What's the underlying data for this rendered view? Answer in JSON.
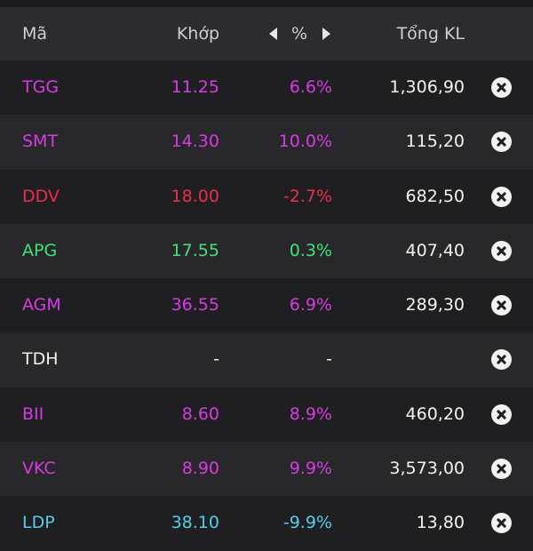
{
  "colors": {
    "up": "#d83be4",
    "ceiling": "#d83be4",
    "down": "#ea2f4e",
    "slight_up": "#3fe37a",
    "reference": "#f2f2f2",
    "floor": "#4fd0ea"
  },
  "header": {
    "symbol": "Mã",
    "price": "Khớp",
    "percent": "%",
    "volume": "Tổng KL",
    "prev_icon": "triangle-left-icon",
    "next_icon": "triangle-right-icon"
  },
  "rows": [
    {
      "symbol": "TGG",
      "price": "11.25",
      "percent": "6.6%",
      "volume": "1,306,90",
      "state": "up"
    },
    {
      "symbol": "SMT",
      "price": "14.30",
      "percent": "10.0%",
      "volume": "115,20",
      "state": "ceiling"
    },
    {
      "symbol": "DDV",
      "price": "18.00",
      "percent": "-2.7%",
      "volume": "682,50",
      "state": "down"
    },
    {
      "symbol": "APG",
      "price": "17.55",
      "percent": "0.3%",
      "volume": "407,40",
      "state": "slight_up"
    },
    {
      "symbol": "AGM",
      "price": "36.55",
      "percent": "6.9%",
      "volume": "289,30",
      "state": "up"
    },
    {
      "symbol": "TDH",
      "price": "-",
      "percent": "-",
      "volume": "",
      "state": "reference"
    },
    {
      "symbol": "BII",
      "price": "8.60",
      "percent": "8.9%",
      "volume": "460,20",
      "state": "up"
    },
    {
      "symbol": "VKC",
      "price": "8.90",
      "percent": "9.9%",
      "volume": "3,573,00",
      "state": "up"
    },
    {
      "symbol": "LDP",
      "price": "38.10",
      "percent": "-9.9%",
      "volume": "13,80",
      "state": "floor"
    }
  ],
  "row_action_icon": "close-circle-icon"
}
